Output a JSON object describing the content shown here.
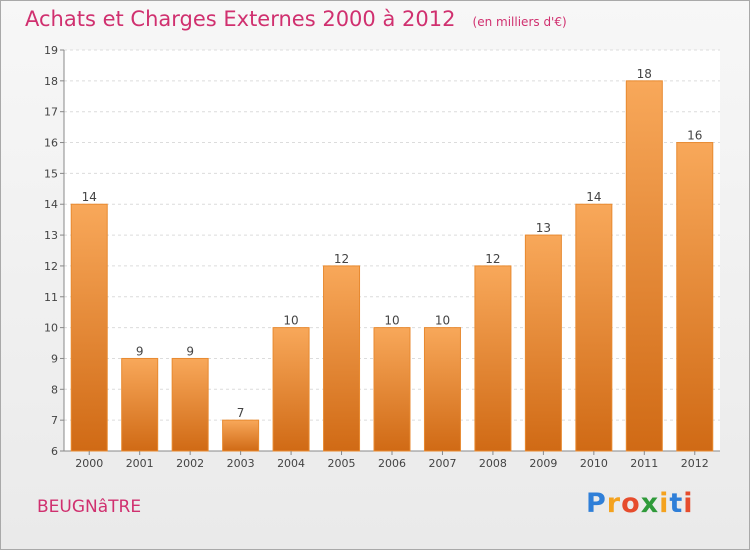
{
  "title": "Achats et Charges Externes 2000 à 2012",
  "subtitle": "(en milliers d'€)",
  "commune": "BEUGNâTRE",
  "logo": {
    "letters": [
      "P",
      "r",
      "o",
      "x",
      "i",
      "t",
      "i"
    ],
    "colors": [
      "#2f7fd8",
      "#f4a21e",
      "#e64c2d",
      "#2f9a3a",
      "#f4a21e",
      "#2f7fd8",
      "#e64c2d"
    ]
  },
  "colors": {
    "bar_top": "#f8a85a",
    "bar_bottom": "#d06a15",
    "bar_edge": "#e88a30",
    "title": "#d0306f"
  },
  "chart_data": {
    "type": "bar",
    "categories": [
      "2000",
      "2001",
      "2002",
      "2003",
      "2004",
      "2005",
      "2006",
      "2007",
      "2008",
      "2009",
      "2010",
      "2011",
      "2012"
    ],
    "values": [
      14,
      9,
      9,
      7,
      10,
      12,
      10,
      10,
      12,
      13,
      14,
      18,
      16
    ],
    "ylim": [
      6,
      19
    ],
    "yticks": [
      6,
      7,
      8,
      9,
      10,
      11,
      12,
      13,
      14,
      15,
      16,
      17,
      18,
      19
    ],
    "grid": true,
    "xlabel": "",
    "ylabel": ""
  }
}
